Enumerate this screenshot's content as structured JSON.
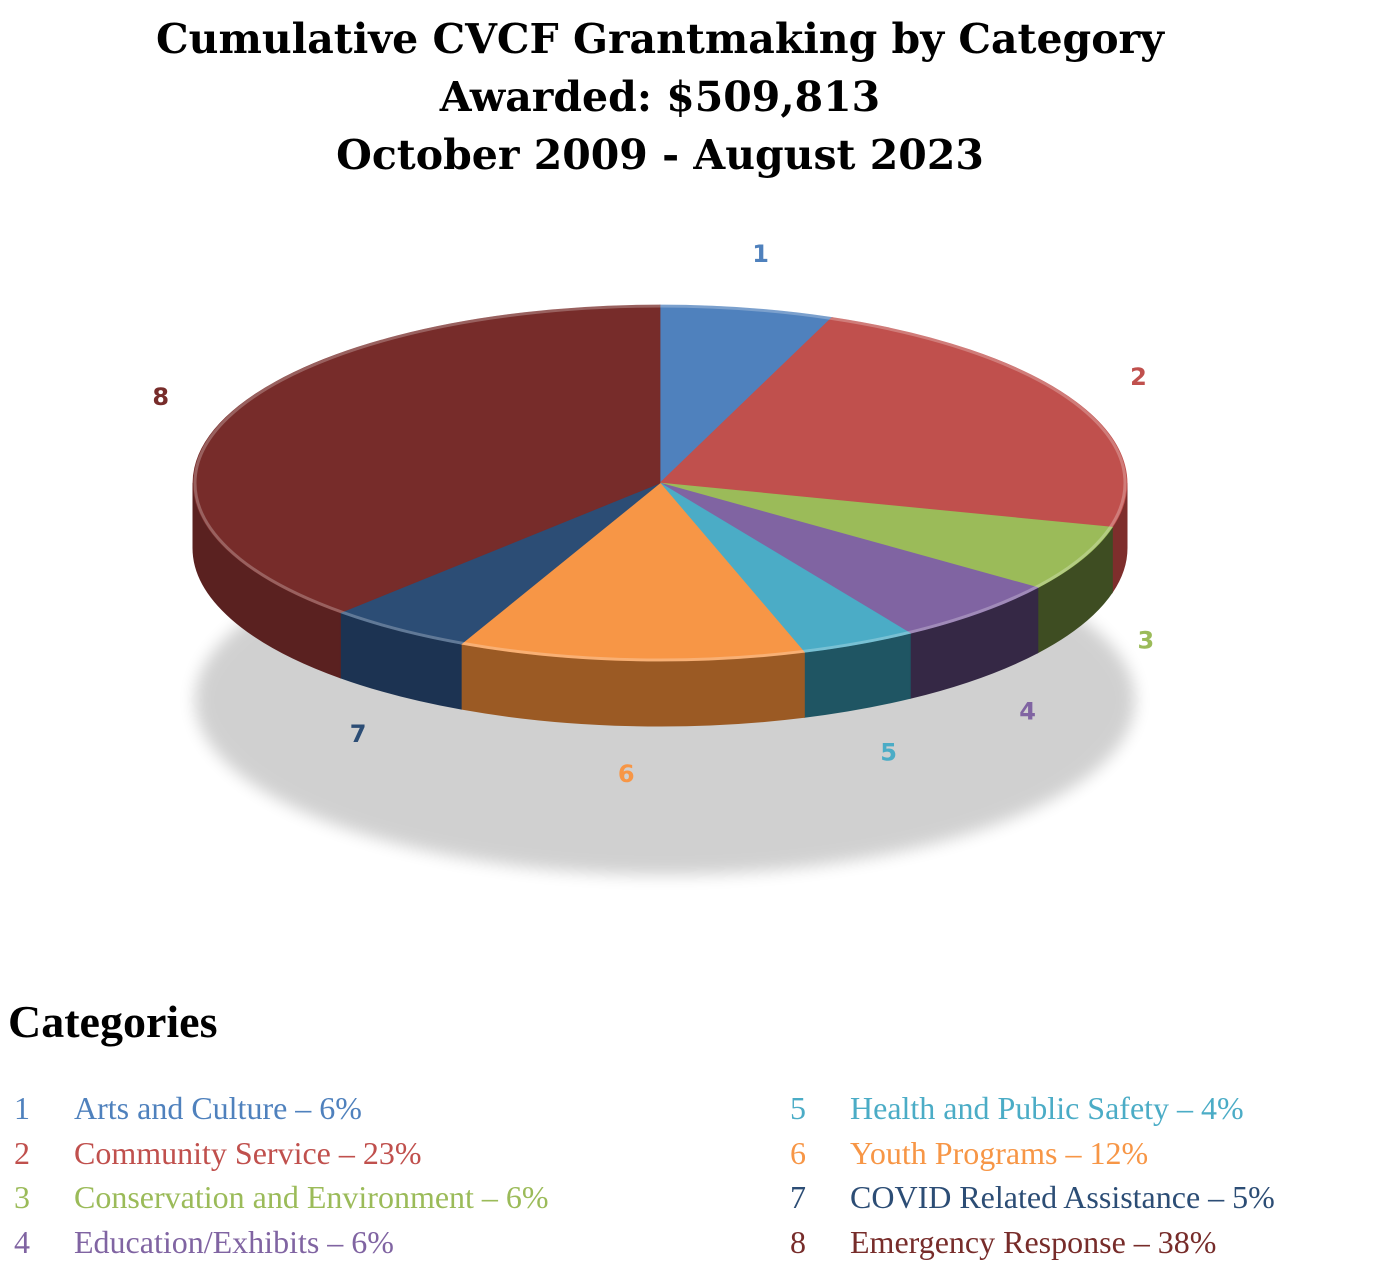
{
  "chart_data": {
    "type": "pie",
    "title": "Cumulative CVCF Grantmaking by Category",
    "subtitle_lines": [
      "Awarded: $509,813",
      "October 2009 - August 2023"
    ],
    "legend_heading": "Categories",
    "slices": [
      {
        "label": "1",
        "name": "Arts and Culture",
        "percent": 6,
        "percent_text": "6%",
        "color": "#4F81BD",
        "side": "#2A4E7A"
      },
      {
        "label": "2",
        "name": "Community Service",
        "percent": 23,
        "percent_text": "23%",
        "color": "#C0504D",
        "side": "#7E2E2C"
      },
      {
        "label": "3",
        "name": "Conservation and Environment",
        "percent": 6,
        "percent_text": "6%",
        "color": "#9BBB59",
        "side": "#3E4D22"
      },
      {
        "label": "4",
        "name": "Education/Exhibits",
        "percent": 6,
        "percent_text": "6%",
        "color": "#8064A2",
        "side": "#352845"
      },
      {
        "label": "5",
        "name": "Health and Public Safety",
        "percent": 4,
        "percent_text": "4%",
        "color": "#4BACC6",
        "side": "#1F5563"
      },
      {
        "label": "6",
        "name": "Youth Programs",
        "percent": 12,
        "percent_text": "12%",
        "color": "#F79646",
        "side": "#9B5A24"
      },
      {
        "label": "7",
        "name": "COVID Related Assistance",
        "percent": 5,
        "percent_text": "5%",
        "color": "#2C4D75",
        "side": "#1C3352"
      },
      {
        "label": "8",
        "name": "Emergency Response",
        "percent": 38,
        "percent_text": "38%",
        "color": "#772C2A",
        "side": "#5A2120"
      }
    ],
    "separator": " – "
  }
}
